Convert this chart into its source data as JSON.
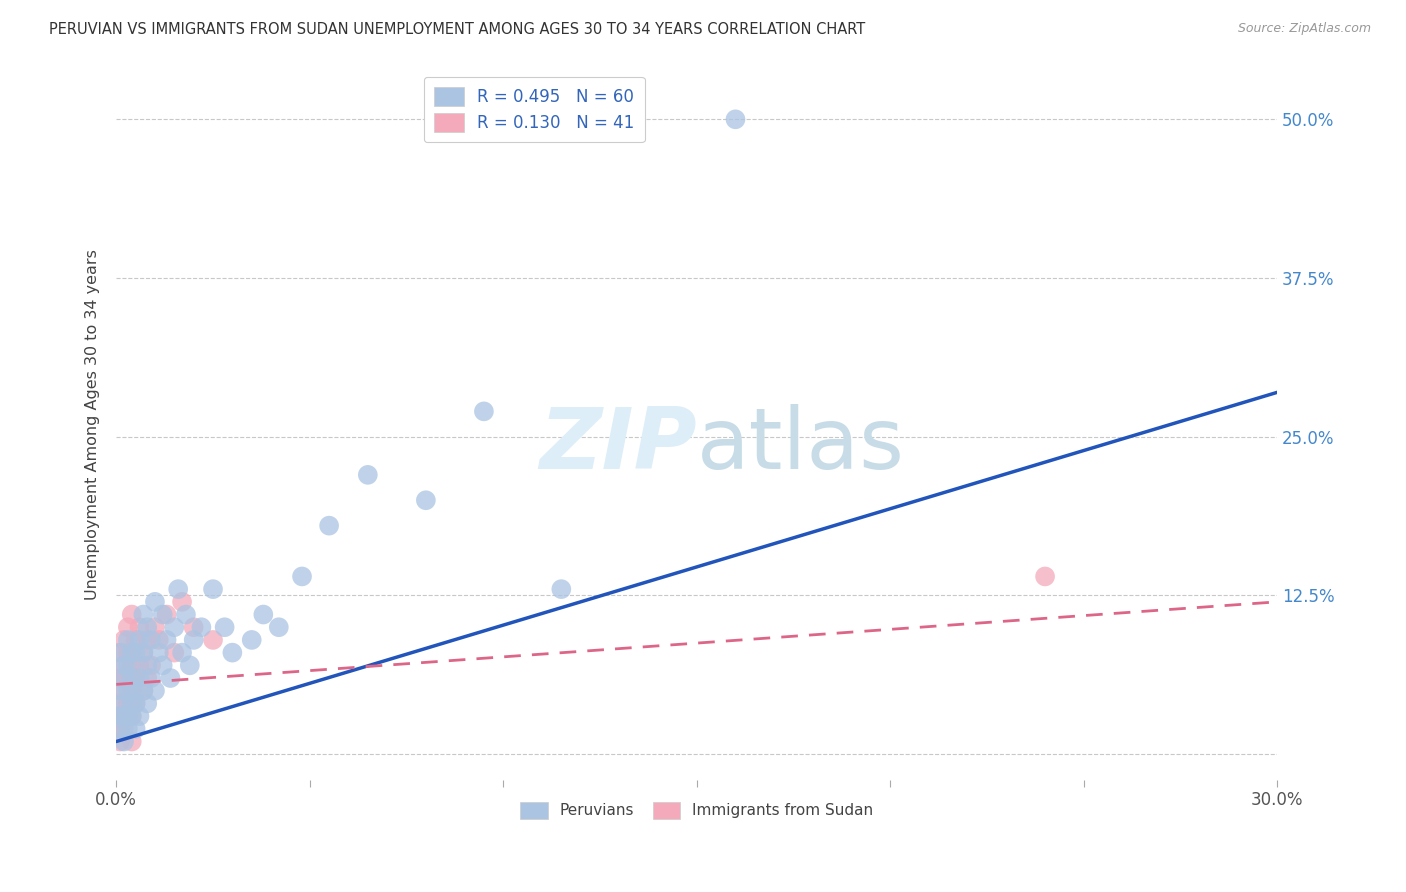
{
  "title": "PERUVIAN VS IMMIGRANTS FROM SUDAN UNEMPLOYMENT AMONG AGES 30 TO 34 YEARS CORRELATION CHART",
  "source": "Source: ZipAtlas.com",
  "ylabel": "Unemployment Among Ages 30 to 34 years",
  "xlim": [
    0.0,
    0.3
  ],
  "ylim": [
    -0.02,
    0.54
  ],
  "xticks": [
    0.0,
    0.05,
    0.1,
    0.15,
    0.2,
    0.25,
    0.3
  ],
  "xticklabels": [
    "0.0%",
    "",
    "",
    "",
    "",
    "",
    "30.0%"
  ],
  "yticks": [
    0.0,
    0.125,
    0.25,
    0.375,
    0.5
  ],
  "yticklabels_right": [
    "",
    "12.5%",
    "25.0%",
    "37.5%",
    "50.0%"
  ],
  "blue_R": 0.495,
  "blue_N": 60,
  "pink_R": 0.13,
  "pink_N": 41,
  "blue_color": "#aac4e2",
  "pink_color": "#f4aabb",
  "blue_line_color": "#2255bb",
  "pink_line_color": "#dd6688",
  "grid_color": "#c8c8c8",
  "background_color": "#ffffff",
  "watermark_zip": "ZIP",
  "watermark_atlas": "atlas",
  "legend_label_blue": "Peruvians",
  "legend_label_pink": "Immigrants from Sudan",
  "blue_scatter_x": [
    0.001,
    0.001,
    0.001,
    0.001,
    0.002,
    0.002,
    0.002,
    0.002,
    0.002,
    0.003,
    0.003,
    0.003,
    0.003,
    0.003,
    0.004,
    0.004,
    0.004,
    0.004,
    0.005,
    0.005,
    0.005,
    0.005,
    0.006,
    0.006,
    0.006,
    0.007,
    0.007,
    0.007,
    0.008,
    0.008,
    0.008,
    0.009,
    0.009,
    0.01,
    0.01,
    0.011,
    0.012,
    0.012,
    0.013,
    0.014,
    0.015,
    0.016,
    0.017,
    0.018,
    0.019,
    0.02,
    0.022,
    0.025,
    0.028,
    0.03,
    0.035,
    0.038,
    0.042,
    0.048,
    0.055,
    0.065,
    0.08,
    0.095,
    0.115,
    0.16
  ],
  "blue_scatter_y": [
    0.03,
    0.05,
    0.08,
    0.02,
    0.04,
    0.06,
    0.03,
    0.07,
    0.01,
    0.05,
    0.03,
    0.07,
    0.09,
    0.02,
    0.04,
    0.06,
    0.08,
    0.03,
    0.05,
    0.02,
    0.08,
    0.04,
    0.06,
    0.09,
    0.03,
    0.05,
    0.08,
    0.11,
    0.04,
    0.07,
    0.1,
    0.06,
    0.09,
    0.05,
    0.12,
    0.08,
    0.07,
    0.11,
    0.09,
    0.06,
    0.1,
    0.13,
    0.08,
    0.11,
    0.07,
    0.09,
    0.1,
    0.13,
    0.1,
    0.08,
    0.09,
    0.11,
    0.1,
    0.14,
    0.18,
    0.22,
    0.2,
    0.27,
    0.13,
    0.5
  ],
  "pink_scatter_x": [
    0.001,
    0.001,
    0.001,
    0.001,
    0.001,
    0.001,
    0.002,
    0.002,
    0.002,
    0.002,
    0.002,
    0.002,
    0.003,
    0.003,
    0.003,
    0.003,
    0.003,
    0.004,
    0.004,
    0.004,
    0.004,
    0.004,
    0.004,
    0.005,
    0.005,
    0.005,
    0.006,
    0.006,
    0.007,
    0.007,
    0.008,
    0.008,
    0.009,
    0.01,
    0.011,
    0.013,
    0.015,
    0.017,
    0.02,
    0.025,
    0.24
  ],
  "pink_scatter_y": [
    0.02,
    0.04,
    0.06,
    0.08,
    0.03,
    0.01,
    0.05,
    0.03,
    0.07,
    0.09,
    0.02,
    0.06,
    0.04,
    0.08,
    0.06,
    0.1,
    0.03,
    0.05,
    0.08,
    0.11,
    0.03,
    0.07,
    0.01,
    0.06,
    0.09,
    0.04,
    0.07,
    0.1,
    0.05,
    0.08,
    0.06,
    0.09,
    0.07,
    0.1,
    0.09,
    0.11,
    0.08,
    0.12,
    0.1,
    0.09,
    0.14
  ],
  "blue_line_x": [
    0.0,
    0.3
  ],
  "blue_line_y": [
    0.01,
    0.285
  ],
  "pink_line_x": [
    0.0,
    0.3
  ],
  "pink_line_y": [
    0.055,
    0.12
  ]
}
